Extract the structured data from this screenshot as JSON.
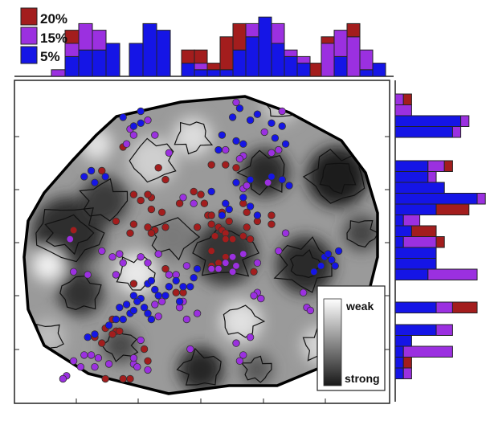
{
  "colors": {
    "red": "#a31d1d",
    "purple": "#9b30e0",
    "blue": "#1515e6",
    "bar_stroke": "#222222",
    "dot_stroke": "#333333"
  },
  "chart_data": [
    {
      "type": "bar",
      "panel": "top-marginal-histogram",
      "legend": {
        "placement": "top-left",
        "entries": [
          {
            "label": "20%",
            "color": "red"
          },
          {
            "label": "15%",
            "color": "purple"
          },
          {
            "label": "5%",
            "color": "blue"
          }
        ]
      },
      "groups": [
        {
          "counts": [
            {
              "blue": 0,
              "purple": 1,
              "red": 0
            },
            {
              "blue": 3,
              "purple": 2,
              "red": 2
            },
            {
              "blue": 4,
              "purple": 4,
              "red": 0
            },
            {
              "blue": 4,
              "purple": 3,
              "red": 0
            },
            {
              "blue": 5,
              "purple": 0,
              "red": 0
            }
          ]
        },
        {
          "counts": [
            {
              "blue": 5,
              "purple": 0,
              "red": 0
            },
            {
              "blue": 8,
              "purple": 0,
              "red": 0
            },
            {
              "blue": 7,
              "purple": 0,
              "red": 0
            }
          ]
        },
        {
          "counts": [
            {
              "blue": 2,
              "purple": 0,
              "red": 2
            },
            {
              "blue": 1,
              "purple": 1,
              "red": 2
            },
            {
              "blue": 1,
              "purple": 0,
              "red": 1
            },
            {
              "blue": 1,
              "purple": 0,
              "red": 5
            },
            {
              "blue": 4,
              "purple": 0,
              "red": 4
            },
            {
              "blue": 6,
              "purple": 2,
              "red": 0
            },
            {
              "blue": 9,
              "purple": 0,
              "red": 0
            },
            {
              "blue": 5,
              "purple": 3,
              "red": 0
            },
            {
              "blue": 3,
              "purple": 1,
              "red": 0
            },
            {
              "blue": 2,
              "purple": 1,
              "red": 0
            },
            {
              "blue": 0,
              "purple": 0,
              "red": 2
            }
          ]
        },
        {
          "counts": [
            {
              "blue": 0,
              "purple": 5,
              "red": 1
            },
            {
              "blue": 3,
              "purple": 4,
              "red": 0
            },
            {
              "blue": 0,
              "purple": 6,
              "red": 2
            },
            {
              "blue": 1,
              "purple": 3,
              "red": 0
            },
            {
              "blue": 2,
              "purple": 0,
              "red": 0
            }
          ]
        }
      ]
    },
    {
      "type": "bar",
      "panel": "right-marginal-histogram",
      "orientation": "horizontal",
      "groups": [
        {
          "counts": [
            {
              "blue": 0,
              "purple": 1,
              "red": 1
            },
            {
              "blue": 0,
              "purple": 2,
              "red": 0
            },
            {
              "blue": 8,
              "purple": 1,
              "red": 0
            },
            {
              "blue": 7,
              "purple": 1,
              "red": 0
            }
          ]
        },
        {
          "counts": [
            {
              "blue": 4,
              "purple": 2,
              "red": 1
            },
            {
              "blue": 4,
              "purple": 1,
              "red": 0
            },
            {
              "blue": 6,
              "purple": 0,
              "red": 0
            },
            {
              "blue": 10,
              "purple": 1,
              "red": 0
            },
            {
              "blue": 5,
              "purple": 0,
              "red": 4
            },
            {
              "blue": 1,
              "purple": 2,
              "red": 0
            },
            {
              "blue": 2,
              "purple": 0,
              "red": 3
            },
            {
              "blue": 1,
              "purple": 4,
              "red": 1
            },
            {
              "blue": 5,
              "purple": 0,
              "red": 0
            },
            {
              "blue": 5,
              "purple": 0,
              "red": 0
            },
            {
              "blue": 4,
              "purple": 6,
              "red": 0
            }
          ]
        },
        {
          "counts": [
            {
              "blue": 5,
              "purple": 2,
              "red": 3
            }
          ]
        },
        {
          "counts": [
            {
              "blue": 5,
              "purple": 2,
              "red": 0
            },
            {
              "blue": 2,
              "purple": 0,
              "red": 0
            },
            {
              "blue": 1,
              "purple": 6,
              "red": 0
            },
            {
              "blue": 1,
              "purple": 0,
              "red": 1
            },
            {
              "blue": 1,
              "purple": 1,
              "red": 0
            }
          ]
        }
      ]
    },
    {
      "type": "scatter",
      "panel": "main-heatmap-with-points",
      "background": "grayscale contour heatmap",
      "colorbar": {
        "top_label": "weak",
        "bottom_label": "strong",
        "placement": "bottom-right"
      },
      "xlim": [
        0,
        100
      ],
      "ylim": [
        0,
        100
      ],
      "points": {
        "red": [
          [
            28,
            83
          ],
          [
            22,
            75
          ],
          [
            38,
            76
          ],
          [
            40,
            72
          ],
          [
            33,
            65
          ],
          [
            31,
            67
          ],
          [
            36,
            66
          ],
          [
            14,
            55
          ],
          [
            44,
            64
          ],
          [
            39,
            61
          ],
          [
            35,
            56
          ],
          [
            53,
            77
          ],
          [
            57,
            77
          ],
          [
            60,
            76
          ],
          [
            48,
            68
          ],
          [
            50,
            67
          ],
          [
            51,
            64
          ],
          [
            52,
            60
          ],
          [
            55,
            56
          ],
          [
            58,
            58
          ],
          [
            53,
            60
          ],
          [
            56,
            61
          ],
          [
            62,
            64
          ],
          [
            63,
            61
          ],
          [
            66,
            58
          ],
          [
            70,
            60
          ],
          [
            70,
            57
          ],
          [
            53,
            48
          ],
          [
            53,
            43
          ],
          [
            57,
            46
          ],
          [
            41,
            36
          ],
          [
            45,
            34
          ],
          [
            43,
            34
          ],
          [
            31,
            37
          ],
          [
            25,
            25
          ],
          [
            26,
            21
          ],
          [
            22,
            17
          ],
          [
            20,
            19
          ],
          [
            27,
            21
          ],
          [
            25,
            20
          ],
          [
            23,
            22
          ],
          [
            35,
            11
          ],
          [
            34,
            15
          ],
          [
            23,
            5
          ],
          [
            28,
            5
          ],
          [
            30,
            5
          ],
          [
            53,
            57
          ],
          [
            49,
            56
          ],
          [
            40,
            56
          ],
          [
            37,
            55
          ],
          [
            36,
            54
          ],
          [
            56,
            55
          ],
          [
            54,
            53
          ],
          [
            57,
            54
          ],
          [
            59,
            52
          ],
          [
            57,
            52
          ],
          [
            63,
            56
          ],
          [
            64,
            52
          ],
          [
            62,
            53
          ],
          [
            55,
            44
          ],
          [
            65,
            41
          ],
          [
            40,
            42
          ],
          [
            26,
            58
          ],
          [
            35,
            67
          ],
          [
            36,
            62
          ],
          [
            30,
            54
          ],
          [
            31,
            57
          ]
        ],
        "purple": [
          [
            30,
            89
          ],
          [
            31,
            87
          ],
          [
            35,
            92
          ],
          [
            29,
            84
          ],
          [
            37,
            87
          ],
          [
            60,
            98
          ],
          [
            73,
            95
          ],
          [
            68,
            88
          ],
          [
            72,
            82
          ],
          [
            62,
            80
          ],
          [
            61,
            79
          ],
          [
            62,
            69
          ],
          [
            63,
            70
          ],
          [
            69,
            71
          ],
          [
            74,
            54
          ],
          [
            72,
            48
          ],
          [
            79,
            34
          ],
          [
            80,
            29
          ],
          [
            81,
            28
          ],
          [
            66,
            34
          ],
          [
            65,
            33
          ],
          [
            67,
            32
          ],
          [
            53,
            42
          ],
          [
            57,
            44
          ],
          [
            59,
            41
          ],
          [
            46,
            43
          ],
          [
            43,
            40
          ],
          [
            41,
            40
          ],
          [
            38,
            47
          ],
          [
            35,
            44
          ],
          [
            33,
            46
          ],
          [
            25,
            46
          ],
          [
            22,
            48
          ],
          [
            18,
            40
          ],
          [
            14,
            41
          ],
          [
            13,
            52
          ],
          [
            31,
            10
          ],
          [
            32,
            9
          ],
          [
            24,
            10
          ],
          [
            21,
            12
          ],
          [
            19,
            13
          ],
          [
            20,
            9
          ],
          [
            31,
            12
          ],
          [
            35,
            8
          ],
          [
            12,
            6
          ],
          [
            11,
            5
          ],
          [
            16,
            9
          ],
          [
            14,
            11
          ],
          [
            17,
            13
          ],
          [
            33,
            18
          ],
          [
            38,
            26
          ],
          [
            37,
            30
          ],
          [
            39,
            31
          ],
          [
            44,
            29
          ],
          [
            45,
            31
          ],
          [
            46,
            25
          ],
          [
            49,
            27
          ],
          [
            55,
            42
          ],
          [
            59,
            46
          ],
          [
            62,
            47
          ],
          [
            60,
            43
          ],
          [
            26,
            40
          ],
          [
            28,
            44
          ],
          [
            27,
            47
          ],
          [
            60,
            17
          ],
          [
            62,
            13
          ],
          [
            61,
            11
          ],
          [
            64,
            19
          ],
          [
            47,
            15
          ],
          [
            57,
            82
          ],
          [
            41,
            81
          ],
          [
            70,
            81
          ],
          [
            45,
            66
          ],
          [
            48,
            64
          ],
          [
            66,
            44
          ]
        ],
        "blue": [
          [
            33,
            95
          ],
          [
            33,
            91
          ],
          [
            28,
            93
          ],
          [
            31,
            90
          ],
          [
            17,
            73
          ],
          [
            19,
            75
          ],
          [
            20,
            71
          ],
          [
            23,
            73
          ],
          [
            53,
            68
          ],
          [
            56,
            60
          ],
          [
            57,
            64
          ],
          [
            58,
            62
          ],
          [
            62,
            66
          ],
          [
            64,
            63
          ],
          [
            66,
            60
          ],
          [
            60,
            71
          ],
          [
            64,
            72
          ],
          [
            70,
            73
          ],
          [
            73,
            72
          ],
          [
            75,
            70
          ],
          [
            87,
            45
          ],
          [
            88,
            43
          ],
          [
            82,
            41
          ],
          [
            85,
            46
          ],
          [
            86,
            47
          ],
          [
            89,
            48
          ],
          [
            84,
            43
          ],
          [
            35,
            37
          ],
          [
            36,
            38
          ],
          [
            37,
            35
          ],
          [
            33,
            32
          ],
          [
            31,
            33
          ],
          [
            29,
            30
          ],
          [
            27,
            29
          ],
          [
            38,
            33
          ],
          [
            40,
            33
          ],
          [
            41,
            36
          ],
          [
            43,
            38
          ],
          [
            45,
            36
          ],
          [
            47,
            36
          ],
          [
            48,
            39
          ],
          [
            32,
            31
          ],
          [
            34,
            29
          ],
          [
            35,
            27
          ],
          [
            36,
            25
          ],
          [
            20,
            20
          ],
          [
            18,
            19
          ],
          [
            24,
            23
          ],
          [
            26,
            25
          ],
          [
            28,
            25
          ],
          [
            30,
            27
          ],
          [
            31,
            28
          ],
          [
            44,
            31
          ],
          [
            55,
            82
          ],
          [
            56,
            87
          ],
          [
            59,
            93
          ],
          [
            61,
            96
          ],
          [
            64,
            92
          ],
          [
            66,
            94
          ],
          [
            70,
            91
          ],
          [
            73,
            90
          ],
          [
            62,
            84
          ],
          [
            74,
            84
          ],
          [
            71,
            86
          ],
          [
            60,
            85
          ],
          [
            49,
            42
          ]
        ]
      }
    }
  ]
}
